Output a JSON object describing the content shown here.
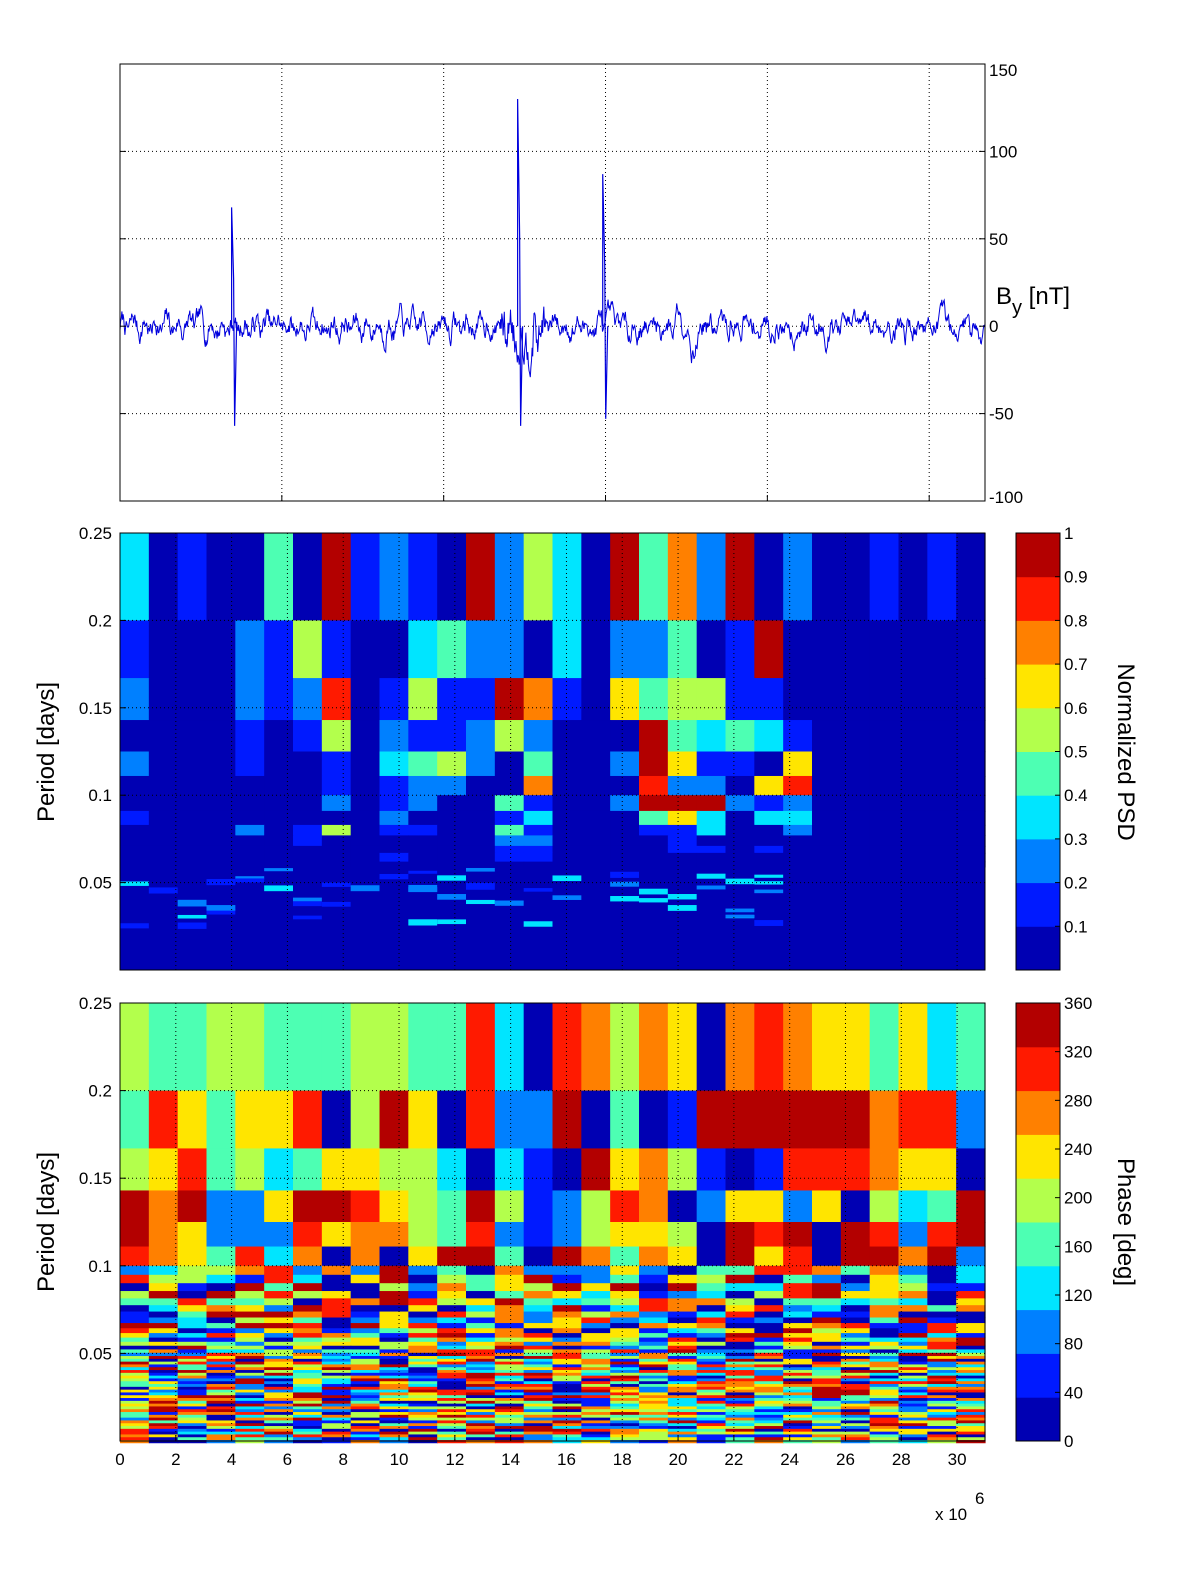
{
  "chart_data": [
    {
      "type": "line",
      "title": "",
      "ylabel": "B",
      "ylabel_sub": "y",
      "ylabel_unit": " [nT]",
      "xlim": [
        0,
        31
      ],
      "ylim": [
        -100,
        150
      ],
      "yticks": [
        "-100",
        "-50",
        "0",
        "50",
        "100",
        "150"
      ],
      "ytick_values": [
        -100,
        -50,
        0,
        50,
        100,
        150
      ],
      "xtick_values": [
        0,
        5.8,
        11.6,
        17.4,
        23.2,
        29
      ],
      "grid": true,
      "line_color": "#0000dd",
      "baseline": 0,
      "spikes": [
        {
          "x": 4.0,
          "ymin": -57,
          "ymax": 68
        },
        {
          "x": 14.25,
          "ymin": -57,
          "ymax": 130
        },
        {
          "x": 17.3,
          "ymin": -53,
          "ymax": 87
        }
      ]
    },
    {
      "type": "heatmap",
      "title": "",
      "ylabel": "Period [days]",
      "colorbar_label": "Normalized PSD",
      "xlim": [
        0,
        31
      ],
      "ylim": [
        0,
        0.25
      ],
      "yticks": [
        "0.05",
        "0.1",
        "0.15",
        "0.2",
        "0.25"
      ],
      "ytick_values": [
        0.05,
        0.1,
        0.15,
        0.2,
        0.25
      ],
      "colorbar_ticks": [
        "0.1",
        "0.2",
        "0.3",
        "0.4",
        "0.5",
        "0.6",
        "0.7",
        "0.8",
        "0.9",
        "1"
      ],
      "colorbar_tick_values": [
        0.1,
        0.2,
        0.3,
        0.4,
        0.5,
        0.6,
        0.7,
        0.8,
        0.9,
        1.0
      ],
      "colorbar_range": [
        0,
        1
      ],
      "colormap": "jet",
      "columns": 30,
      "row_edges": [
        0.25,
        0.2,
        0.167,
        0.143,
        0.125,
        0.111,
        0.1,
        0.091,
        0.083,
        0.077,
        0.071,
        0.067,
        0.062,
        0.059,
        0.056,
        0.053,
        0.05,
        0.048,
        0.045,
        0.043,
        0.042,
        0.04,
        0.038,
        0.037,
        0.036,
        0.0
      ],
      "values": [
        [
          0.35,
          0.05,
          0.15,
          0.05,
          0.05,
          0.45,
          0.05,
          0.95,
          0.15,
          0.25,
          0.15,
          0.05,
          0.95,
          0.25,
          0.55,
          0.35,
          0.05,
          0.95,
          0.45,
          0.75,
          0.25,
          0.95,
          0.05,
          0.25,
          0.05,
          0.05,
          0.15,
          0.05,
          0.15,
          0.05
        ],
        [
          0.15,
          0.05,
          0.05,
          0.05,
          0.25,
          0.15,
          0.55,
          0.15,
          0.05,
          0.05,
          0.35,
          0.45,
          0.25,
          0.25,
          0.05,
          0.35,
          0.05,
          0.25,
          0.25,
          0.45,
          0.05,
          0.15,
          0.95,
          0.05,
          0.05,
          0.05,
          0.05,
          0.05,
          0.05,
          0.05
        ],
        [
          0.25,
          0.05,
          0.05,
          0.05,
          0.25,
          0.15,
          0.25,
          0.85,
          0.05,
          0.15,
          0.55,
          0.15,
          0.15,
          0.95,
          0.75,
          0.15,
          0.05,
          0.65,
          0.45,
          0.55,
          0.55,
          0.15,
          0.15,
          0.05,
          0.05,
          0.05,
          0.05,
          0.05,
          0.05,
          0.05
        ],
        [
          0.05,
          0.05,
          0.05,
          0.05,
          0.15,
          0.05,
          0.15,
          0.55,
          0.05,
          0.25,
          0.15,
          0.15,
          0.25,
          0.55,
          0.25,
          0.05,
          0.05,
          0.05,
          0.95,
          0.45,
          0.35,
          0.45,
          0.35,
          0.15,
          0.05,
          0.05,
          0.05,
          0.05,
          0.05,
          0.05
        ],
        [
          0.25,
          0.05,
          0.05,
          0.05,
          0.15,
          0.05,
          0.05,
          0.15,
          0.05,
          0.35,
          0.45,
          0.55,
          0.25,
          0.05,
          0.45,
          0.05,
          0.05,
          0.25,
          0.95,
          0.65,
          0.15,
          0.15,
          0.05,
          0.65,
          0.05,
          0.05,
          0.05,
          0.05,
          0.05,
          0.05
        ],
        [
          0.05,
          0.05,
          0.05,
          0.05,
          0.05,
          0.05,
          0.05,
          0.15,
          0.05,
          0.15,
          0.25,
          0.25,
          0.05,
          0.05,
          0.75,
          0.05,
          0.05,
          0.05,
          0.85,
          0.25,
          0.25,
          0.05,
          0.65,
          0.85,
          0.05,
          0.05,
          0.05,
          0.05,
          0.05,
          0.05
        ],
        [
          0.05,
          0.05,
          0.05,
          0.05,
          0.05,
          0.05,
          0.05,
          0.25,
          0.05,
          0.15,
          0.25,
          0.05,
          0.05,
          0.45,
          0.15,
          0.05,
          0.05,
          0.25,
          0.95,
          0.95,
          0.95,
          0.25,
          0.15,
          0.25,
          0.05,
          0.05,
          0.05,
          0.05,
          0.05,
          0.05
        ],
        [
          0.15,
          0.05,
          0.05,
          0.05,
          0.05,
          0.05,
          0.05,
          0.05,
          0.05,
          0.25,
          0.05,
          0.05,
          0.05,
          0.15,
          0.35,
          0.05,
          0.05,
          0.05,
          0.45,
          0.65,
          0.35,
          0.05,
          0.35,
          0.35,
          0.05,
          0.05,
          0.05,
          0.05,
          0.05,
          0.05
        ],
        [
          0.05,
          0.05,
          0.05,
          0.05,
          0.25,
          0.05,
          0.15,
          0.55,
          0.05,
          0.15,
          0.15,
          0.05,
          0.05,
          0.45,
          0.15,
          0.05,
          0.05,
          0.05,
          0.15,
          0.15,
          0.35,
          0.05,
          0.05,
          0.25,
          0.05,
          0.05,
          0.05,
          0.05,
          0.05,
          0.05
        ],
        [
          0.05,
          0.05,
          0.05,
          0.05,
          0.05,
          0.05,
          0.15,
          0.05,
          0.05,
          0.05,
          0.05,
          0.05,
          0.05,
          0.25,
          0.25,
          0.05,
          0.05,
          0.05,
          0.05,
          0.15,
          0.05,
          0.05,
          0.05,
          0.05,
          0.05,
          0.05,
          0.05,
          0.05,
          0.05,
          0.05
        ],
        [
          0.05,
          0.05,
          0.05,
          0.05,
          0.05,
          0.05,
          0.05,
          0.05,
          0.05,
          0.05,
          0.05,
          0.05,
          0.05,
          0.15,
          0.15,
          0.05,
          0.05,
          0.05,
          0.05,
          0.15,
          0.15,
          0.05,
          0.15,
          0.05,
          0.05,
          0.05,
          0.05,
          0.05,
          0.05,
          0.05
        ],
        [
          0.05,
          0.05,
          0.05,
          0.05,
          0.05,
          0.05,
          0.05,
          0.05,
          0.05,
          0.15,
          0.05,
          0.05,
          0.05,
          0.15,
          0.15,
          0.05,
          0.05,
          0.05,
          0.05,
          0.05,
          0.05,
          0.05,
          0.05,
          0.05,
          0.05,
          0.05,
          0.05,
          0.05,
          0.05,
          0.05
        ],
        [
          0.05,
          0.05,
          0.05,
          0.05,
          0.05,
          0.05,
          0.05,
          0.05,
          0.05,
          0.05,
          0.05,
          0.05,
          0.05,
          0.05,
          0.05,
          0.05,
          0.05,
          0.05,
          0.05,
          0.05,
          0.05,
          0.05,
          0.05,
          0.05,
          0.05,
          0.05,
          0.05,
          0.05,
          0.05,
          0.05
        ]
      ]
    },
    {
      "type": "heatmap",
      "title": "",
      "ylabel": "Period [days]",
      "xlabel": "",
      "xlim": [
        0,
        31
      ],
      "ylim": [
        0,
        0.25
      ],
      "xticks": [
        "0",
        "2",
        "4",
        "6",
        "8",
        "10",
        "12",
        "14",
        "16",
        "18",
        "20",
        "22",
        "24",
        "26",
        "28",
        "30"
      ],
      "xtick_values": [
        0,
        2,
        4,
        6,
        8,
        10,
        12,
        14,
        16,
        18,
        20,
        22,
        24,
        26,
        28,
        30
      ],
      "x_multiplier": "x 10",
      "x_multiplier_exp": "6",
      "yticks": [
        "0.05",
        "0.1",
        "0.15",
        "0.2",
        "0.25"
      ],
      "ytick_values": [
        0.05,
        0.1,
        0.15,
        0.2,
        0.25
      ],
      "colorbar_label": "Phase [deg]",
      "colorbar_ticks": [
        "0",
        "40",
        "80",
        "120",
        "160",
        "200",
        "240",
        "280",
        "320",
        "360"
      ],
      "colorbar_tick_values": [
        0,
        40,
        80,
        120,
        160,
        200,
        240,
        280,
        320,
        360
      ],
      "colorbar_range": [
        0,
        360
      ],
      "colormap": "jet",
      "columns": 30,
      "row_edges": [
        0.25,
        0.2,
        0.167,
        0.143,
        0.125,
        0.111,
        0.1
      ],
      "values": [
        [
          190,
          170,
          170,
          190,
          190,
          170,
          170,
          170,
          190,
          190,
          170,
          170,
          310,
          130,
          20,
          310,
          280,
          190,
          280,
          230,
          20,
          280,
          310,
          280,
          230,
          230,
          150,
          230,
          110,
          170
        ],
        [
          150,
          310,
          230,
          170,
          230,
          230,
          310,
          20,
          190,
          340,
          230,
          20,
          310,
          90,
          80,
          340,
          20,
          170,
          20,
          60,
          340,
          340,
          340,
          340,
          340,
          340,
          280,
          310,
          310,
          80
        ],
        [
          190,
          230,
          310,
          160,
          190,
          130,
          160,
          230,
          230,
          200,
          200,
          130,
          20,
          130,
          60,
          20,
          340,
          230,
          260,
          200,
          60,
          20,
          60,
          310,
          310,
          310,
          280,
          230,
          230,
          20
        ],
        [
          340,
          280,
          340,
          80,
          80,
          230,
          340,
          340,
          310,
          230,
          200,
          160,
          340,
          200,
          60,
          80,
          200,
          310,
          280,
          20,
          80,
          230,
          230,
          80,
          230,
          20,
          200,
          120,
          160,
          340
        ],
        [
          340,
          280,
          230,
          80,
          90,
          80,
          310,
          230,
          280,
          280,
          200,
          160,
          310,
          80,
          60,
          80,
          200,
          230,
          230,
          200,
          20,
          340,
          310,
          340,
          20,
          340,
          310,
          80,
          310,
          340
        ],
        [
          310,
          280,
          230,
          160,
          310,
          130,
          280,
          20,
          280,
          20,
          230,
          340,
          340,
          160,
          20,
          340,
          280,
          160,
          280,
          230,
          20,
          340,
          230,
          310,
          20,
          340,
          340,
          280,
          340,
          80
        ]
      ]
    }
  ]
}
